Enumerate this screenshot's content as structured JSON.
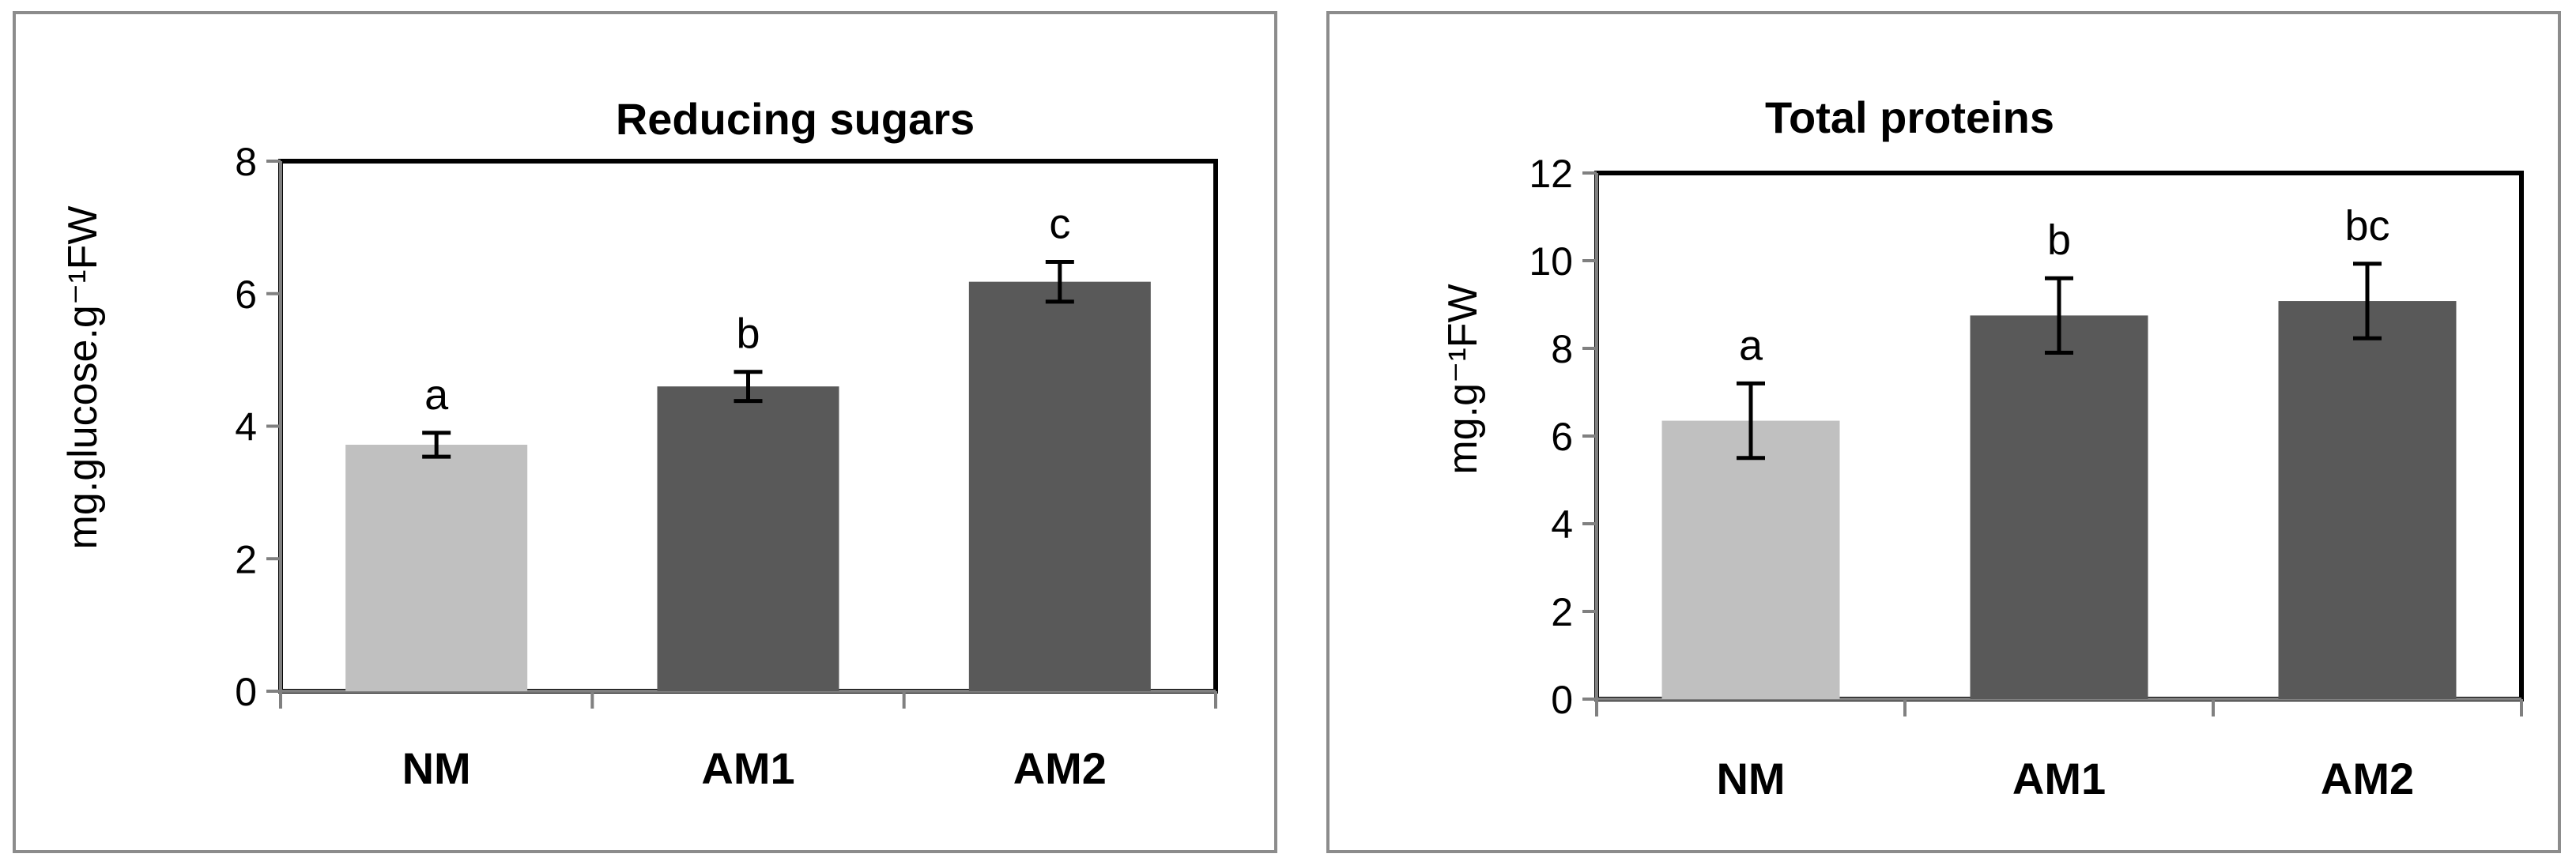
{
  "figure": {
    "background": "#ffffff",
    "frame_color": "#8c8c8c"
  },
  "chart_data": [
    {
      "type": "bar",
      "title": "Reducing sugars",
      "xlabel": "",
      "ylabel": "mg.glucose.g⁻¹FW",
      "categories": [
        "NM",
        "AM1",
        "AM2"
      ],
      "values": [
        3.72,
        4.6,
        6.18
      ],
      "errors": [
        0.18,
        0.22,
        0.3
      ],
      "significance_letters": [
        "a",
        "b",
        "c"
      ],
      "bar_colors": [
        "#c0c0c0",
        "#595959",
        "#595959"
      ],
      "ylim": [
        0,
        8
      ],
      "yticks": [
        "0",
        "2",
        "4",
        "6",
        "8"
      ]
    },
    {
      "type": "bar",
      "title": "Total proteins",
      "xlabel": "",
      "ylabel": "mg.g⁻¹FW",
      "categories": [
        "NM",
        "AM1",
        "AM2"
      ],
      "values": [
        6.35,
        8.75,
        9.08
      ],
      "errors": [
        0.85,
        0.85,
        0.85
      ],
      "significance_letters": [
        "a",
        "b",
        "bc"
      ],
      "bar_colors": [
        "#c0c0c0",
        "#595959",
        "#595959"
      ],
      "ylim": [
        0,
        12
      ],
      "yticks": [
        "0",
        "2",
        "4",
        "6",
        "8",
        "10",
        "12"
      ]
    }
  ]
}
